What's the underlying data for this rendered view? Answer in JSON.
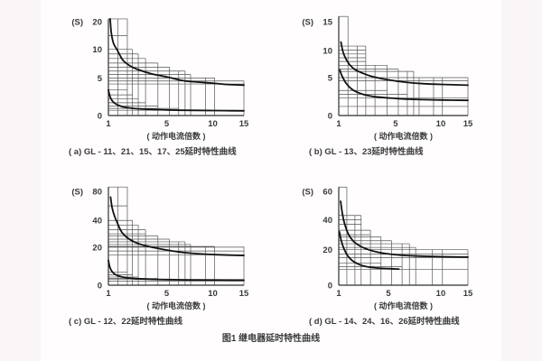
{
  "figure_title": "图1  继电器延时特性曲线",
  "colors": {
    "grid": "#555555",
    "axis": "#2f2f2f",
    "curve": "#111111",
    "text": "#3a3a3a",
    "page_background": "#fffdfd",
    "margin_band": "#faf5f6"
  },
  "chart_data": [
    {
      "type": "line",
      "id": "a",
      "caption": "( a) GL - 11、21、15、17、25延时特性曲线",
      "y_unit_label": "(S)",
      "xlabel": "( 动作电流倍数 )",
      "xlim": [
        1,
        15
      ],
      "x_ticks": [
        {
          "v": 1,
          "f": 0
        },
        {
          "v": 5,
          "f": 0.43
        },
        {
          "v": 10,
          "f": 0.77
        },
        {
          "v": 15,
          "f": 1
        }
      ],
      "y_ticks": [
        {
          "v": 0,
          "f": 0
        },
        {
          "v": 5,
          "f": 0.4
        },
        {
          "v": 10,
          "f": 0.705
        },
        {
          "v": 20,
          "f": 1
        }
      ],
      "grid_vlines": [
        [
          1.65,
          21
        ],
        [
          2.3,
          21
        ],
        [
          2.65,
          10
        ],
        [
          3.05,
          9.2
        ],
        [
          3.55,
          8.4
        ],
        [
          4.4,
          7.6
        ],
        [
          5.3,
          6.9
        ],
        [
          6.3,
          6.2
        ],
        [
          7.0,
          6.2
        ],
        [
          7.6,
          5.6
        ],
        [
          9.2,
          5.0
        ],
        [
          10.3,
          5.0
        ],
        [
          15,
          4.6
        ]
      ],
      "grid_hlines": [
        [
          21,
          2.3
        ],
        [
          15,
          2.3
        ],
        [
          10,
          2.65
        ],
        [
          9.2,
          3.05
        ],
        [
          8.4,
          3.55
        ],
        [
          7.6,
          4.4
        ],
        [
          6.9,
          5.3
        ],
        [
          6.2,
          7.0
        ],
        [
          5.6,
          7.6
        ],
        [
          5.0,
          10.3
        ],
        [
          4.6,
          15
        ],
        [
          4.2,
          15
        ],
        [
          3.4,
          2.3
        ],
        [
          2.75,
          2.65
        ],
        [
          2.2,
          3.05
        ],
        [
          1.7,
          3.55
        ],
        [
          1.25,
          4.4
        ],
        [
          0.95,
          6.3
        ],
        [
          0.7,
          15
        ]
      ],
      "series": [
        {
          "name": "upper-limit-curve",
          "points": [
            [
              1.12,
              21
            ],
            [
              1.2,
              16
            ],
            [
              1.35,
              12.2
            ],
            [
              1.6,
              9.9
            ],
            [
              2,
              8.1
            ],
            [
              2.5,
              7.1
            ],
            [
              3,
              6.5
            ],
            [
              4,
              5.7
            ],
            [
              5,
              5.2
            ],
            [
              6,
              4.85
            ],
            [
              7,
              4.6
            ],
            [
              8,
              4.5
            ],
            [
              10,
              4.3
            ],
            [
              12,
              4.15
            ],
            [
              15,
              4.05
            ]
          ]
        },
        {
          "name": "lower-limit-curve",
          "points": [
            [
              1.0,
              3.4
            ],
            [
              1.1,
              2.6
            ],
            [
              1.25,
              2.0
            ],
            [
              1.5,
              1.55
            ],
            [
              2,
              1.15
            ],
            [
              2.5,
              1.0
            ],
            [
              3,
              0.9
            ],
            [
              4,
              0.8
            ],
            [
              5,
              0.75
            ],
            [
              7,
              0.7
            ],
            [
              10,
              0.66
            ],
            [
              15,
              0.62
            ]
          ]
        }
      ]
    },
    {
      "type": "line",
      "id": "b",
      "caption": "( b) GL - 13、23延时特性曲线",
      "y_unit_label": "(S)",
      "xlabel": "( 动作电流倍数 )",
      "xlim": [
        1,
        15
      ],
      "x_ticks": [
        {
          "v": 1,
          "f": 0
        },
        {
          "v": 5,
          "f": 0.44
        },
        {
          "v": 10,
          "f": 0.79
        },
        {
          "v": 15,
          "f": 1
        }
      ],
      "y_ticks": [
        {
          "v": 0,
          "f": 0
        },
        {
          "v": 5,
          "f": 0.404
        },
        {
          "v": 10,
          "f": 0.69
        },
        {
          "v": 15,
          "f": 1
        }
      ],
      "grid_vlines": [
        [
          1.65,
          15.9
        ],
        [
          2.3,
          10.8
        ],
        [
          2.9,
          10.8
        ],
        [
          3.55,
          7.3
        ],
        [
          4.4,
          7.3
        ],
        [
          5.3,
          6.6
        ],
        [
          6.3,
          6.15
        ],
        [
          7.0,
          6.15
        ],
        [
          7.6,
          5.0
        ],
        [
          9.2,
          5.0
        ],
        [
          10.3,
          5.0
        ],
        [
          15,
          5.0
        ]
      ],
      "grid_hlines": [
        [
          15.9,
          1.65
        ],
        [
          10.8,
          2.9
        ],
        [
          10.1,
          2.9
        ],
        [
          9.4,
          2.9
        ],
        [
          8.7,
          2.9
        ],
        [
          8.0,
          2.9
        ],
        [
          7.3,
          4.4
        ],
        [
          6.6,
          5.3
        ],
        [
          6.15,
          7.0
        ],
        [
          5.0,
          15
        ],
        [
          4.6,
          15
        ],
        [
          3.3,
          4.4
        ],
        [
          2.8,
          6.3
        ],
        [
          2.3,
          15
        ],
        [
          1.2,
          15
        ]
      ],
      "series": [
        {
          "name": "upper-limit-curve",
          "points": [
            [
              1.15,
              11.5
            ],
            [
              1.3,
              9.8
            ],
            [
              1.5,
              8.5
            ],
            [
              1.8,
              7.3
            ],
            [
              2.2,
              6.4
            ],
            [
              2.8,
              5.7
            ],
            [
              3.5,
              5.1
            ],
            [
              4.5,
              4.7
            ],
            [
              6,
              4.4
            ],
            [
              8,
              4.2
            ],
            [
              10,
              4.1
            ],
            [
              15,
              4.0
            ]
          ]
        },
        {
          "name": "lower-limit-curve",
          "points": [
            [
              1.08,
              6.4
            ],
            [
              1.2,
              5.5
            ],
            [
              1.5,
              4.3
            ],
            [
              1.9,
              3.5
            ],
            [
              2.4,
              3.0
            ],
            [
              3,
              2.65
            ],
            [
              4,
              2.4
            ],
            [
              5,
              2.25
            ],
            [
              6.5,
              2.15
            ],
            [
              8,
              2.1
            ],
            [
              10,
              2.05
            ],
            [
              15,
              2.0
            ]
          ]
        }
      ]
    },
    {
      "type": "line",
      "id": "c",
      "caption": "( c) GL - 12、22延时特性曲线",
      "y_unit_label": "(S)",
      "xlabel": "( 动作电流倍数 )",
      "xlim": [
        1,
        15
      ],
      "x_ticks": [
        {
          "v": 1,
          "f": 0
        },
        {
          "v": 5,
          "f": 0.43
        },
        {
          "v": 10,
          "f": 0.77
        },
        {
          "v": 15,
          "f": 1
        }
      ],
      "y_ticks": [
        {
          "v": 0,
          "f": 0
        },
        {
          "v": 20,
          "f": 0.405
        },
        {
          "v": 40,
          "f": 0.69
        },
        {
          "v": 80,
          "f": 1
        }
      ],
      "grid_vlines": [
        [
          1.65,
          86
        ],
        [
          2.3,
          86
        ],
        [
          2.65,
          40
        ],
        [
          3.05,
          36.5
        ],
        [
          3.55,
          33
        ],
        [
          4.4,
          28.5
        ],
        [
          5.3,
          26
        ],
        [
          6.3,
          24
        ],
        [
          7.0,
          24
        ],
        [
          7.6,
          22
        ],
        [
          9.2,
          20.5
        ],
        [
          10.3,
          20.5
        ],
        [
          15,
          20.5
        ]
      ],
      "grid_hlines": [
        [
          86,
          2.3
        ],
        [
          60,
          2.3
        ],
        [
          40,
          2.65
        ],
        [
          36.5,
          3.05
        ],
        [
          33,
          3.55
        ],
        [
          30,
          3.55
        ],
        [
          28.5,
          4.4
        ],
        [
          26,
          5.3
        ],
        [
          24,
          7.0
        ],
        [
          22,
          7.6
        ],
        [
          20.5,
          10.3
        ],
        [
          20,
          15
        ],
        [
          18,
          15
        ],
        [
          16,
          15
        ],
        [
          6.8,
          2.3
        ],
        [
          5.4,
          2.65
        ],
        [
          4.3,
          3.05
        ],
        [
          3.5,
          4.4
        ],
        [
          3.0,
          15
        ],
        [
          2.2,
          15
        ]
      ],
      "series": [
        {
          "name": "upper-limit-curve",
          "points": [
            [
              1.15,
              72
            ],
            [
              1.25,
              58
            ],
            [
              1.4,
              47
            ],
            [
              1.6,
              38.5
            ],
            [
              1.9,
              31.5
            ],
            [
              2.3,
              27
            ],
            [
              2.8,
              23.8
            ],
            [
              3.5,
              21.2
            ],
            [
              4.5,
              19.2
            ],
            [
              5.5,
              18.1
            ],
            [
              7,
              17.1
            ],
            [
              9,
              16.4
            ],
            [
              11,
              16
            ],
            [
              15,
              15.6
            ]
          ]
        },
        {
          "name": "lower-limit-curve",
          "points": [
            [
              1.0,
              13
            ],
            [
              1.1,
              9.5
            ],
            [
              1.25,
              7.2
            ],
            [
              1.5,
              5.5
            ],
            [
              1.9,
              4.4
            ],
            [
              2.4,
              3.8
            ],
            [
              3,
              3.4
            ],
            [
              4,
              3.1
            ],
            [
              5,
              2.95
            ],
            [
              7,
              2.8
            ],
            [
              10,
              2.7
            ],
            [
              15,
              2.6
            ]
          ]
        }
      ]
    },
    {
      "type": "line",
      "id": "d",
      "caption": "( d) GL - 14、24、16、26延时特性曲线",
      "y_unit_label": "(S)",
      "xlabel": "( 动作电流倍数 )",
      "xlim": [
        1,
        15
      ],
      "x_ticks": [
        {
          "v": 1,
          "f": 0
        },
        {
          "v": 5,
          "f": 0.385
        },
        {
          "v": 10,
          "f": 0.79
        },
        {
          "v": 15,
          "f": 1
        }
      ],
      "y_ticks": [
        {
          "v": 0,
          "f": 0
        },
        {
          "v": 20,
          "f": 0.378
        },
        {
          "v": 40,
          "f": 0.697
        },
        {
          "v": 60,
          "f": 1
        }
      ],
      "grid_vlines": [
        [
          1.65,
          63
        ],
        [
          2.3,
          43
        ],
        [
          2.8,
          43
        ],
        [
          3.55,
          33
        ],
        [
          4.4,
          28.5
        ],
        [
          5.3,
          26
        ],
        [
          6.3,
          24
        ],
        [
          7.0,
          24
        ],
        [
          7.6,
          21.5
        ],
        [
          9.2,
          20
        ],
        [
          10.3,
          20
        ],
        [
          15,
          20
        ]
      ],
      "grid_hlines": [
        [
          63,
          1.65
        ],
        [
          43,
          2.8
        ],
        [
          40,
          2.8
        ],
        [
          37,
          2.8
        ],
        [
          33,
          3.55
        ],
        [
          30,
          3.55
        ],
        [
          28.5,
          4.4
        ],
        [
          26,
          5.3
        ],
        [
          24,
          7.0
        ],
        [
          21.5,
          7.6
        ],
        [
          20,
          15
        ],
        [
          17.5,
          15
        ],
        [
          15.5,
          15
        ],
        [
          12.5,
          4.4
        ],
        [
          10.5,
          6.3
        ],
        [
          9,
          15
        ]
      ],
      "series": [
        {
          "name": "upper-limit-curve",
          "points": [
            [
              1.15,
              53
            ],
            [
              1.3,
              44
            ],
            [
              1.5,
              36.5
            ],
            [
              1.8,
              30
            ],
            [
              2.2,
              25.5
            ],
            [
              2.7,
              22.5
            ],
            [
              3.3,
              20.3
            ],
            [
              4,
              18.8
            ],
            [
              5,
              17.6
            ],
            [
              6.5,
              16.8
            ],
            [
              8,
              16.4
            ],
            [
              10,
              16.1
            ],
            [
              15,
              15.8
            ]
          ]
        },
        {
          "name": "lower-limit-curve",
          "points": [
            [
              1.05,
              32
            ],
            [
              1.2,
              26
            ],
            [
              1.4,
              21
            ],
            [
              1.7,
              16.8
            ],
            [
              2.1,
              13.8
            ],
            [
              2.6,
              11.8
            ],
            [
              3.2,
              10.5
            ],
            [
              4,
              9.7
            ],
            [
              5,
              9.3
            ],
            [
              6,
              9.1
            ]
          ]
        }
      ]
    }
  ]
}
